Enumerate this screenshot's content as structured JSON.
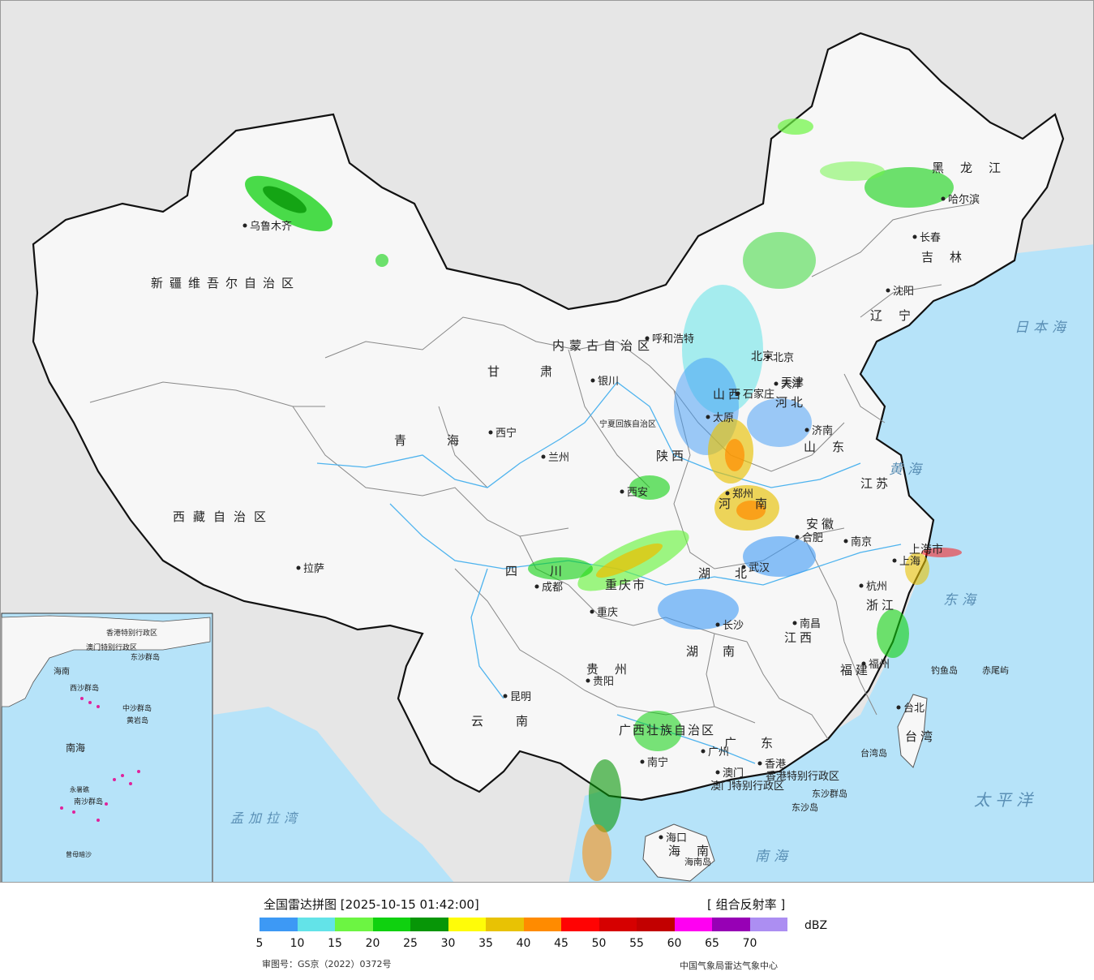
{
  "map": {
    "provinces": [
      {
        "name": "新疆维吾尔自治区"
      },
      {
        "name": "西藏自治区"
      },
      {
        "name": "青海"
      },
      {
        "name": "甘肃"
      },
      {
        "name": "内蒙古自治区"
      },
      {
        "name": "黑龙江"
      },
      {
        "name": "吉林"
      },
      {
        "name": "辽宁"
      },
      {
        "name": "河北"
      },
      {
        "name": "山西"
      },
      {
        "name": "陕西"
      },
      {
        "name": "宁夏回族自治区"
      },
      {
        "name": "四川"
      },
      {
        "name": "重庆市"
      },
      {
        "name": "云南"
      },
      {
        "name": "贵州"
      },
      {
        "name": "广西壮族自治区"
      },
      {
        "name": "广东"
      },
      {
        "name": "湖南"
      },
      {
        "name": "湖北"
      },
      {
        "name": "河南"
      },
      {
        "name": "山东"
      },
      {
        "name": "江苏"
      },
      {
        "name": "安徽"
      },
      {
        "name": "浙江"
      },
      {
        "name": "江西"
      },
      {
        "name": "福建"
      },
      {
        "name": "海南"
      },
      {
        "name": "台湾"
      },
      {
        "name": "上海市"
      },
      {
        "name": "北京"
      },
      {
        "name": "天津"
      },
      {
        "name": "香港特别行政区"
      },
      {
        "name": "澳门特别行政区"
      }
    ],
    "cities": [
      "乌鲁木齐",
      "拉萨",
      "西宁",
      "兰州",
      "银川",
      "呼和浩特",
      "北京",
      "天津",
      "石家庄",
      "太原",
      "济南",
      "郑州",
      "西安",
      "成都",
      "重庆",
      "昆明",
      "贵阳",
      "南宁",
      "广州",
      "香港",
      "澳门",
      "长沙",
      "武汉",
      "南昌",
      "合肥",
      "南京",
      "上海",
      "杭州",
      "福州",
      "台北",
      "海口",
      "哈尔滨",
      "长春",
      "沈阳"
    ],
    "seas": [
      "日本海",
      "黄海",
      "东海",
      "太平洋",
      "南海",
      "孟加拉湾"
    ],
    "islands": [
      "钓鱼岛",
      "赤尾屿",
      "台湾岛",
      "东沙群岛",
      "东沙岛",
      "海南岛"
    ],
    "inset_labels": [
      "南海",
      "海南",
      "香港特别行政区",
      "澳门特别行政区",
      "东沙群岛",
      "中沙群岛",
      "西沙群岛",
      "南沙群岛",
      "黄岩岛",
      "永暑礁",
      "曾母暗沙"
    ]
  },
  "legend": {
    "title": "全国雷达拼图 [2025-10-15 01:42:00]",
    "product": "[ 组合反射率 ]",
    "unit": "dBZ",
    "colors": [
      "#3d99f5",
      "#63e3e8",
      "#6cf542",
      "#0fd10f",
      "#079607",
      "#fffc08",
      "#e8c204",
      "#ff8b00",
      "#ff0303",
      "#d60000",
      "#c20000",
      "#ff00f2",
      "#9700b5",
      "#ac8ef2"
    ],
    "ticks": [
      "5",
      "10",
      "15",
      "20",
      "25",
      "30",
      "35",
      "40",
      "45",
      "50",
      "55",
      "60",
      "65",
      "70"
    ],
    "approval": "审图号：GS京（2022）0372号",
    "agency": "中国气象局雷达气象中心"
  }
}
